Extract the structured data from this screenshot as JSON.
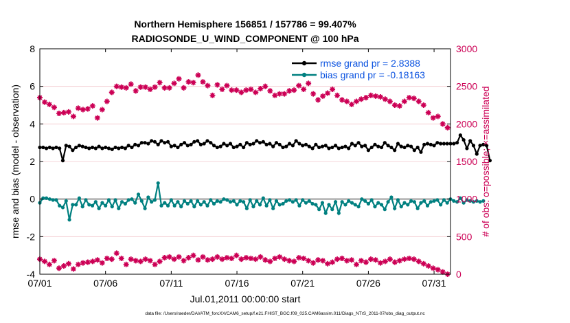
{
  "chart_data": {
    "type": "line",
    "title": "Northern Hemisphere 156851 / 157786 = 99.407%",
    "subtitle": "RADIOSONDE_U_WIND_COMPONENT @ 100 hPa",
    "xlabel": "Jul.01,2011 00:00:00 start",
    "ylabel": "rmse and bias (model - observation)",
    "y2label": "# of obs: o=possible; ×=assimilated",
    "xlim": [
      1,
      32.25
    ],
    "ylim": [
      -4,
      8
    ],
    "y2lim": [
      0,
      3000
    ],
    "x_ticks": [
      1,
      6,
      11,
      16,
      21,
      26,
      31
    ],
    "x_tick_labels": [
      "07/01",
      "07/06",
      "07/11",
      "07/16",
      "07/21",
      "07/26",
      "07/31"
    ],
    "y_ticks": [
      -4,
      -2,
      0,
      2,
      4,
      6,
      8
    ],
    "y_tick_labels": [
      "-4",
      "-2",
      "0",
      "2",
      "4",
      "6",
      "8"
    ],
    "y2_ticks": [
      0,
      500,
      1000,
      1500,
      2000,
      2500,
      3000
    ],
    "y2_tick_labels": [
      "0",
      "500",
      "1000",
      "1500",
      "2000",
      "2500",
      "3000"
    ],
    "x_step_days": 0.25,
    "series": [
      {
        "name": "rmse grand pr = 2.8388",
        "color": "#000000",
        "axis": "left",
        "values": [
          2.75,
          2.75,
          2.7,
          2.75,
          2.7,
          2.75,
          2.7,
          2.05,
          2.85,
          2.8,
          2.6,
          2.75,
          2.85,
          2.8,
          2.75,
          2.7,
          2.75,
          2.7,
          2.8,
          2.7,
          2.75,
          2.7,
          2.65,
          2.75,
          2.7,
          2.75,
          2.7,
          2.85,
          2.75,
          2.9,
          2.85,
          3.0,
          3.0,
          2.95,
          3.1,
          3.05,
          2.9,
          3.1,
          3.0,
          3.05,
          2.8,
          2.85,
          2.75,
          2.9,
          3.0,
          2.85,
          2.9,
          3.05,
          3.1,
          2.9,
          2.95,
          3.1,
          3.0,
          2.85,
          2.75,
          2.8,
          2.95,
          2.85,
          2.95,
          2.75,
          2.8,
          2.9,
          2.75,
          3.0,
          2.9,
          2.95,
          3.1,
          3.0,
          3.05,
          2.9,
          2.95,
          2.8,
          3.0,
          2.9,
          2.75,
          2.8,
          2.95,
          2.85,
          3.1,
          2.95,
          2.85,
          2.9,
          2.8,
          2.7,
          2.9,
          2.75,
          2.8,
          2.85,
          2.7,
          2.75,
          2.85,
          2.7,
          2.75,
          2.8,
          2.7,
          2.95,
          2.85,
          3.0,
          2.8,
          2.85,
          2.6,
          2.75,
          2.9,
          2.8,
          2.75,
          3.0,
          2.85,
          2.75,
          2.6,
          2.95,
          2.8,
          2.75,
          2.85,
          2.8,
          2.6,
          2.75,
          2.5,
          2.9,
          2.95,
          2.9,
          2.85,
          3.0,
          2.95,
          2.95,
          2.95,
          2.95,
          2.95,
          3.0,
          3.4,
          3.15,
          2.7,
          3.1,
          2.85,
          2.4,
          2.85,
          2.9,
          2.85,
          2.05
        ]
      },
      {
        "name": "bias grand pr = -0.18163",
        "color": "#008080",
        "axis": "left",
        "values": [
          -0.2,
          0.05,
          0.05,
          0.0,
          -0.05,
          -0.05,
          -0.35,
          -0.45,
          -0.1,
          -1.1,
          -0.3,
          -0.3,
          0.05,
          -0.4,
          -0.05,
          -0.3,
          -0.35,
          -0.15,
          -0.5,
          -0.2,
          -0.35,
          -0.05,
          -0.4,
          -0.05,
          -0.5,
          -0.15,
          -0.25,
          -0.05,
          0.0,
          -0.2,
          0.25,
          -0.1,
          -0.5,
          0.1,
          -0.15,
          -0.05,
          0.85,
          -0.35,
          -0.2,
          -0.35,
          -0.05,
          -0.35,
          -0.15,
          -0.4,
          -0.1,
          -0.25,
          -0.1,
          -0.4,
          -0.1,
          -0.3,
          -0.15,
          -0.35,
          -0.05,
          -0.25,
          -0.1,
          -0.15,
          0.0,
          -0.05,
          -0.15,
          -0.1,
          -0.3,
          -0.1,
          -0.15,
          -0.5,
          -0.05,
          -0.4,
          -0.1,
          -0.3,
          0.05,
          -0.35,
          -0.05,
          -0.5,
          -0.1,
          -0.3,
          -0.25,
          -0.1,
          -0.05,
          -0.15,
          -0.05,
          -0.35,
          -0.05,
          -0.2,
          -0.1,
          -0.25,
          -0.3,
          -0.55,
          -0.2,
          -0.75,
          -0.3,
          -0.55,
          -0.15,
          -0.75,
          -0.15,
          -0.3,
          -0.1,
          -0.2,
          -0.3,
          -0.4,
          0.0,
          -0.1,
          -0.25,
          -0.05,
          -0.4,
          -0.2,
          -0.3,
          -0.55,
          -0.15,
          0.1,
          -0.5,
          -0.05,
          -0.4,
          -0.2,
          -0.3,
          -0.1,
          -0.15,
          -0.5,
          -0.2,
          -0.1,
          -0.35,
          -0.15,
          -0.1,
          -0.05,
          -0.3,
          -0.05,
          -0.2,
          0.0,
          -0.1,
          -0.15,
          0.05,
          -0.2,
          -0.05,
          -0.1,
          -0.15,
          -0.1,
          -0.15,
          -0.1
        ]
      },
      {
        "name": "possible (o)",
        "color": "#cc0055",
        "axis": "right",
        "marker": "o",
        "values": [
          2350,
          2290,
          2260,
          2220,
          2140,
          2150,
          2160,
          2100,
          2210,
          2190,
          2200,
          2240,
          2080,
          2190,
          2300,
          2420,
          2500,
          2490,
          2480,
          2530,
          2440,
          2490,
          2490,
          2460,
          2490,
          2550,
          2480,
          2480,
          2540,
          2600,
          2480,
          2560,
          2550,
          2650,
          2560,
          2510,
          2380,
          2520,
          2460,
          2510,
          2450,
          2450,
          2420,
          2450,
          2460,
          2420,
          2470,
          2500,
          2440,
          2380,
          2400,
          2400,
          2440,
          2450,
          2510,
          2460,
          2540,
          2400,
          2320,
          2370,
          2410,
          2460,
          2380,
          2320,
          2300,
          2260,
          2300,
          2330,
          2350,
          2380,
          2370,
          2360,
          2330,
          2300,
          2250,
          2240,
          2300,
          2350,
          2340,
          2300,
          2250,
          2150,
          2080,
          2100,
          2000,
          1950
        ],
        "x_step_days": 0.365
      },
      {
        "name": "assimilated (×)",
        "color": "#cc0055",
        "axis": "right",
        "marker": "x",
        "values": [
          200,
          170,
          130,
          180,
          80,
          110,
          140,
          70,
          130,
          150,
          160,
          170,
          190,
          150,
          210,
          200,
          280,
          210,
          130,
          200,
          180,
          170,
          200,
          180,
          130,
          170,
          220,
          230,
          200,
          230,
          180,
          220,
          250,
          190,
          230,
          190,
          200,
          230,
          200,
          220,
          210,
          250,
          200,
          220,
          210,
          200,
          230,
          190,
          170,
          210,
          230,
          200,
          180,
          170,
          220,
          210,
          180,
          150,
          190,
          180,
          140,
          160,
          200,
          210,
          180,
          190,
          130,
          180,
          160,
          200,
          190,
          150,
          170,
          200,
          160,
          180,
          200,
          210,
          200,
          170,
          140,
          110,
          80,
          60,
          30,
          0
        ],
        "x_step_days": 0.365
      }
    ],
    "legend_position": "top-right",
    "zero_line": true
  },
  "footer": {
    "text": "data file: /Users/raeder/DAI/ATM_forcXX/CAM6_setup/f.e21.FHIST_BGC.f09_025.CAM6assim.011/Diags_NTrS_2011-07/obs_diag_output.nc"
  },
  "colors": {
    "rmse": "#000000",
    "bias": "#008080",
    "obs": "#cc0055",
    "legend_text": "#0a52e0",
    "zero_line": "#b0b0b0"
  }
}
